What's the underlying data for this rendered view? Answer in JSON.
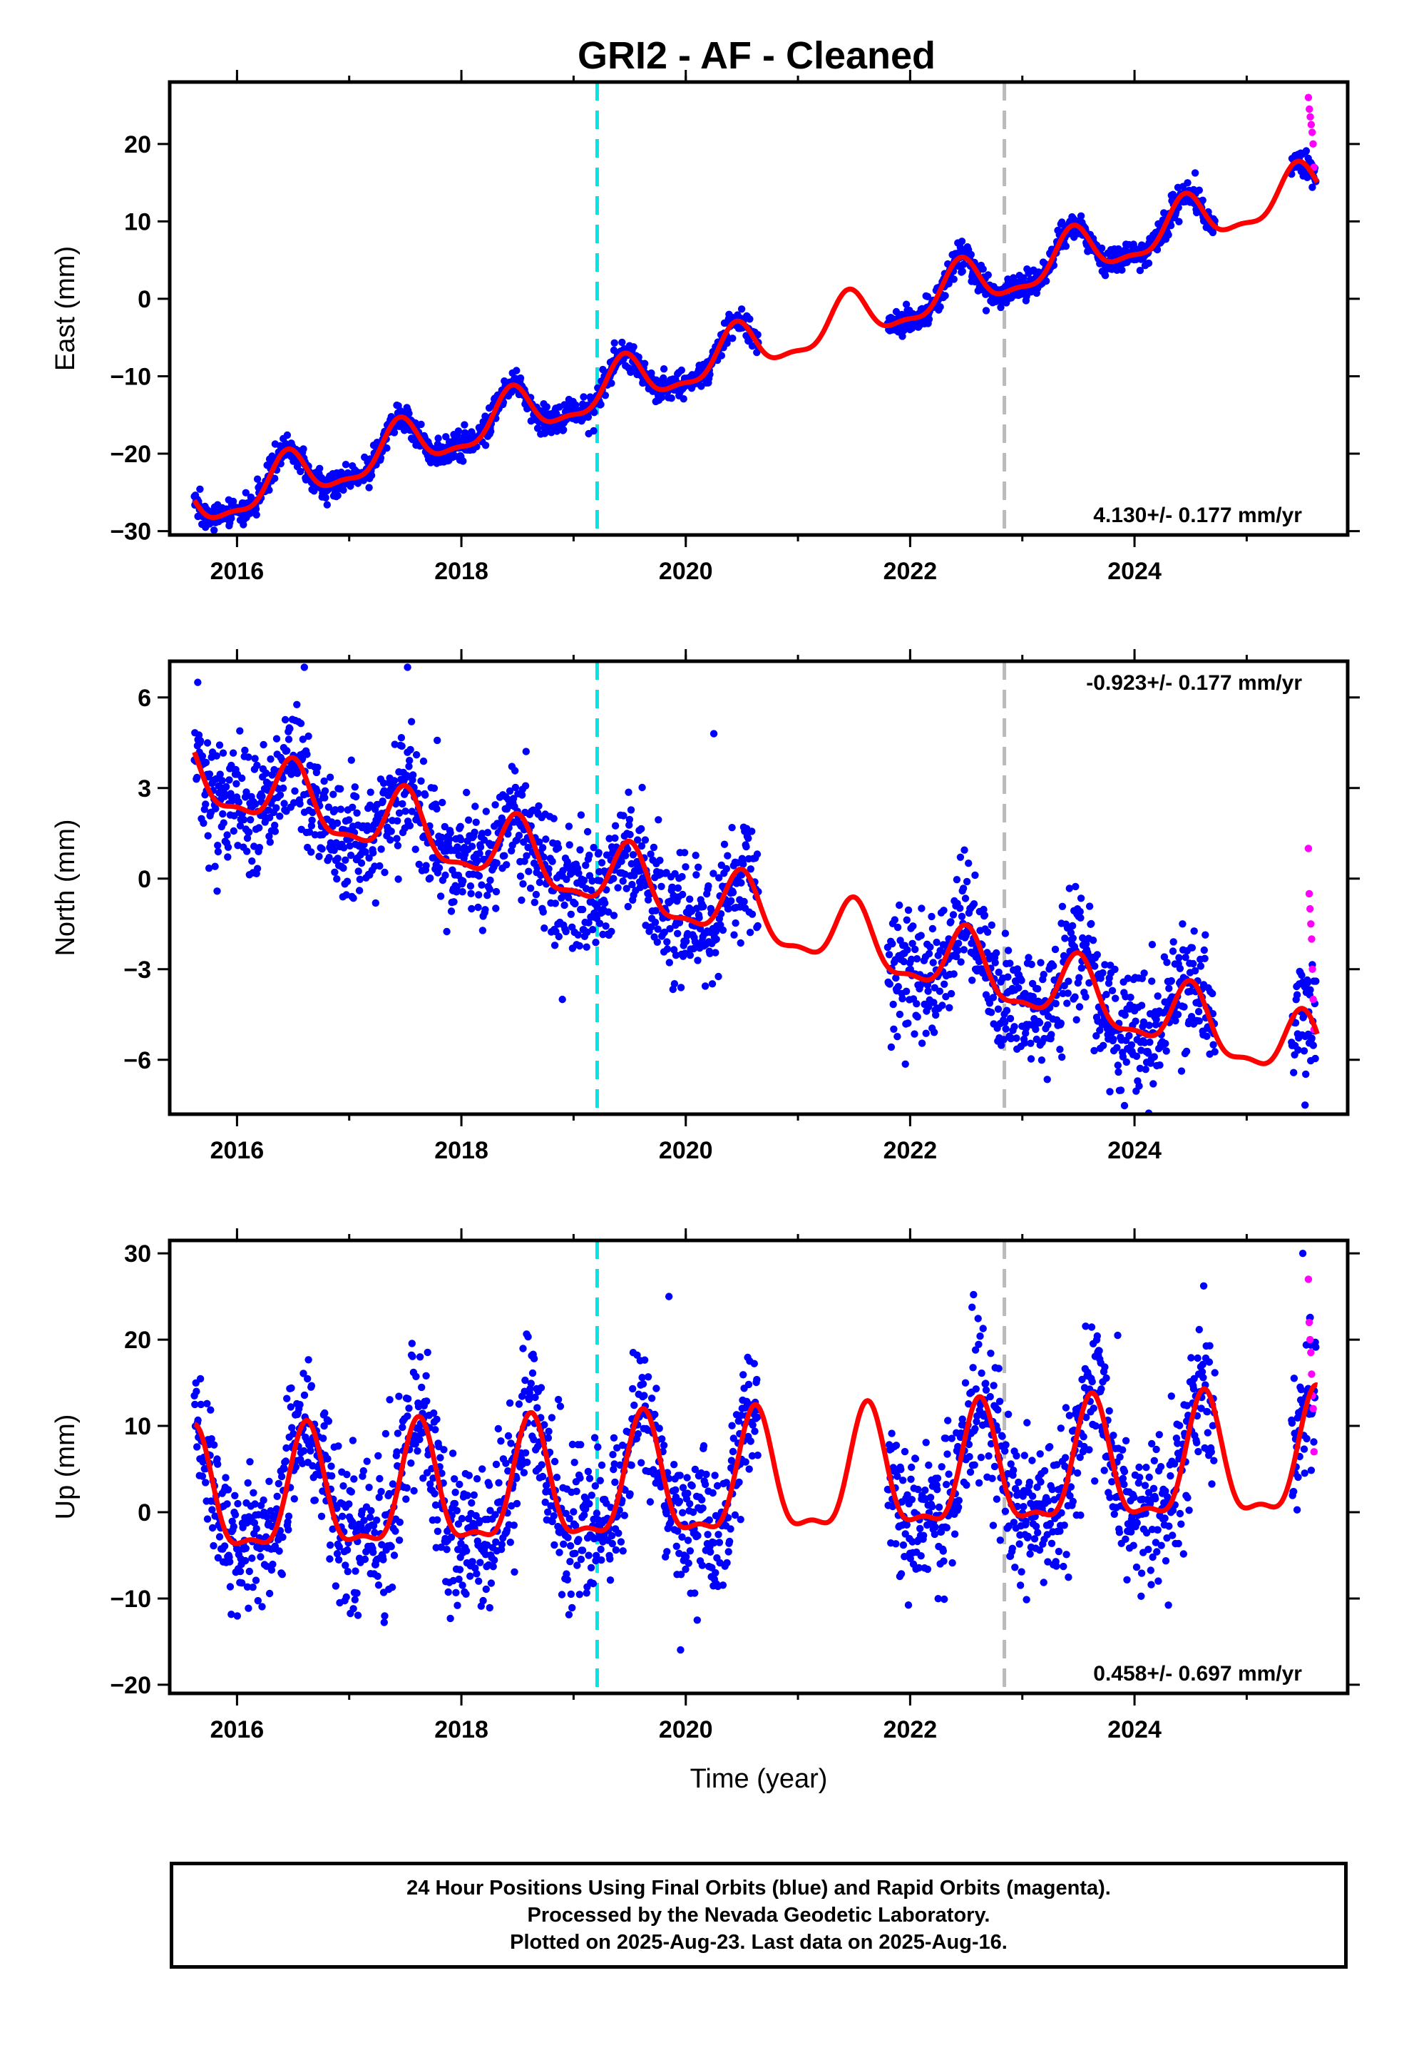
{
  "figure": {
    "title": "GRI2  - AF - Cleaned",
    "caption_lines": [
      "24 Hour Positions Using Final Orbits (blue) and Rapid Orbits (magenta).",
      "Processed by the Nevada Geodetic Laboratory.",
      "Plotted on 2025-Aug-23. Last data on 2025-Aug-16."
    ]
  },
  "colors": {
    "final_orbits": "#0000ff",
    "rapid_orbits": "#ff00ff",
    "model_fit": "#ff0000",
    "equipment_change": "#00e5e5",
    "other_event": "#bbbbbb"
  },
  "chart_data": [
    {
      "type": "scatter",
      "panel": "east",
      "title": "",
      "xlabel": "",
      "ylabel": "East (mm)",
      "xlim": [
        2015.4,
        2025.9
      ],
      "ylim": [
        -30.5,
        28
      ],
      "x_ticks": [
        2016,
        2018,
        2020,
        2022,
        2024
      ],
      "x_tick_labels": [
        "2016",
        "2018",
        "2020",
        "2022",
        "2024"
      ],
      "y_ticks": [
        -30,
        -20,
        -10,
        0,
        10,
        20
      ],
      "y_tick_labels": [
        "−30",
        "−20",
        "−10",
        "0",
        "10",
        "20"
      ],
      "rate_label": "4.130+/- 0.177 mm/yr",
      "rate_position": "bottom-right",
      "event_lines": [
        {
          "x": 2019.21,
          "style": "dashed",
          "color": "cyan"
        },
        {
          "x": 2022.84,
          "style": "dashed",
          "color": "gray"
        }
      ],
      "data_segments": [
        [
          2015.62,
          2020.65
        ],
        [
          2021.8,
          2024.72
        ],
        [
          2025.4,
          2025.62
        ]
      ],
      "model": {
        "intercept": -26.9,
        "ref_year": 2015.62,
        "rate": 4.13,
        "annual_amp": 3.0,
        "annual_peak": 0.45
      },
      "series": [
        {
          "name": "Final Orbits (blue)",
          "scatter_sd": 0.9,
          "outliers": [
            [
              2015.93,
              -29.3
            ],
            [
              2023.9,
              4.6
            ]
          ]
        },
        {
          "name": "Rapid Orbits (magenta)",
          "x_range": [
            2025.55,
            2025.6
          ],
          "values": [
            26,
            24.5,
            23.5,
            22.5,
            21.5,
            20,
            17
          ]
        }
      ]
    },
    {
      "type": "scatter",
      "panel": "north",
      "title": "",
      "xlabel": "",
      "ylabel": "North (mm)",
      "xlim": [
        2015.4,
        2025.9
      ],
      "ylim": [
        -7.8,
        7.2
      ],
      "x_ticks": [
        2016,
        2018,
        2020,
        2022,
        2024
      ],
      "x_tick_labels": [
        "2016",
        "2018",
        "2020",
        "2022",
        "2024"
      ],
      "y_ticks": [
        -6,
        -3,
        0,
        3,
        6
      ],
      "y_tick_labels": [
        "−6",
        "−3",
        "0",
        "3",
        "6"
      ],
      "rate_label": "-0.923+/- 0.177 mm/yr",
      "rate_position": "top-right",
      "event_lines": [
        {
          "x": 2019.21,
          "style": "dashed",
          "color": "cyan"
        },
        {
          "x": 2022.84,
          "style": "dashed",
          "color": "gray"
        }
      ],
      "data_segments": [
        [
          2015.62,
          2020.65
        ],
        [
          2021.8,
          2024.72
        ],
        [
          2025.4,
          2025.62
        ]
      ],
      "model": {
        "intercept": 3.4,
        "ref_year": 2015.62,
        "rate": -0.923,
        "annual_amp": 1.05,
        "annual_peak": 0.5
      },
      "series": [
        {
          "name": "Final Orbits (blue)",
          "scatter_sd": 1.0,
          "outliers": [
            [
              2015.65,
              6.5
            ],
            [
              2016.6,
              7.0
            ],
            [
              2017.52,
              7.0
            ],
            [
              2018.9,
              -4.0
            ],
            [
              2020.25,
              4.8
            ],
            [
              2025.52,
              -7.5
            ]
          ]
        },
        {
          "name": "Rapid Orbits (magenta)",
          "x_range": [
            2025.55,
            2025.6
          ],
          "values": [
            1,
            -0.5,
            -1,
            -1.5,
            -2,
            -3,
            -4,
            -5
          ]
        }
      ]
    },
    {
      "type": "scatter",
      "panel": "up",
      "title": "",
      "xlabel": "Time (year)",
      "ylabel": "Up (mm)",
      "xlim": [
        2015.4,
        2025.9
      ],
      "ylim": [
        -21,
        31.5
      ],
      "x_ticks": [
        2016,
        2018,
        2020,
        2022,
        2024
      ],
      "x_tick_labels": [
        "2016",
        "2018",
        "2020",
        "2022",
        "2024"
      ],
      "y_ticks": [
        -20,
        -10,
        0,
        10,
        20,
        30
      ],
      "y_tick_labels": [
        "−20",
        "−10",
        "0",
        "10",
        "20",
        "30"
      ],
      "rate_label": "0.458+/- 0.697 mm/yr",
      "rate_position": "bottom-right",
      "event_lines": [
        {
          "x": 2019.21,
          "style": "dashed",
          "color": "cyan"
        },
        {
          "x": 2022.84,
          "style": "dashed",
          "color": "gray"
        }
      ],
      "data_segments": [
        [
          2015.62,
          2020.65
        ],
        [
          2021.8,
          2024.72
        ],
        [
          2025.4,
          2025.62
        ]
      ],
      "model": {
        "intercept": 1.0,
        "ref_year": 2015.62,
        "rate": 0.458,
        "annual_amp": 6.8,
        "annual_peak": 0.62
      },
      "series": [
        {
          "name": "Final Orbits (blue)",
          "scatter_sd": 4.2,
          "outliers": [
            [
              2019.85,
              25.0
            ],
            [
              2023.85,
              20.5
            ],
            [
              2025.5,
              30.0
            ]
          ]
        },
        {
          "name": "Rapid Orbits (magenta)",
          "x_range": [
            2025.55,
            2025.6
          ],
          "values": [
            27,
            22,
            20,
            18.5,
            16,
            13.5,
            12,
            7
          ]
        }
      ]
    }
  ]
}
